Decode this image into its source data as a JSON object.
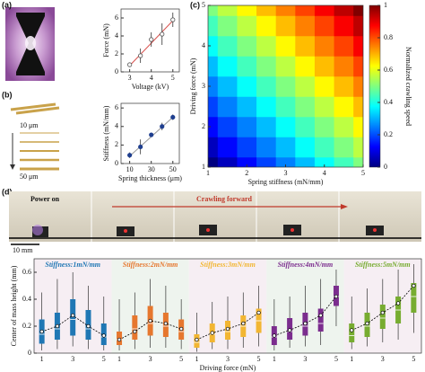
{
  "labels": {
    "a": "(a)",
    "b": "(b)",
    "c": "(c)",
    "d": "(d)",
    "thin": "10 μm",
    "thick": "50 μm",
    "power": "Power on",
    "crawl": "Crawling forward",
    "scale": "10 mm"
  },
  "chart_data": [
    {
      "type": "scatter",
      "xlabel": "Voltage (kV)",
      "ylabel": "Force (mN)",
      "x": [
        3,
        3.5,
        4,
        4.5,
        5
      ],
      "values": [
        0.8,
        1.8,
        3.6,
        4.2,
        5.8
      ],
      "errors": [
        0.2,
        0.8,
        0.8,
        1.2,
        0.8
      ],
      "fit": {
        "x": [
          3,
          5
        ],
        "y": [
          0.7,
          5.7
        ],
        "color": "#d9534f"
      },
      "marker": "open",
      "color": "#555555",
      "xlim": [
        2.6,
        5.3
      ],
      "ylim": [
        0,
        7
      ],
      "xticks": [
        3,
        4,
        5
      ],
      "yticks": [
        0,
        2,
        4,
        6
      ]
    },
    {
      "type": "scatter",
      "xlabel": "Spring thickness (μm)",
      "ylabel": "Stiffness (mN/mm)",
      "x": [
        10,
        20,
        30,
        40,
        50
      ],
      "values": [
        0.9,
        1.8,
        3.1,
        4.0,
        5.0
      ],
      "errors": [
        0.3,
        0.8,
        0.15,
        0.4,
        0.3
      ],
      "fit": {
        "x": [
          10,
          50
        ],
        "y": [
          0.8,
          5.0
        ],
        "color": "#999999"
      },
      "marker": "filled",
      "color": "#1f3f8f",
      "xlim": [
        2,
        56
      ],
      "ylim": [
        0,
        6.5
      ],
      "xticks": [
        10,
        30,
        50
      ],
      "yticks": [
        0,
        2,
        4,
        6
      ]
    },
    {
      "type": "heatmap",
      "xlabel": "Spring stiffness (mN/mm)",
      "ylabel": "Driving force (mN)",
      "colorbar_label": "Normalized crawling speed",
      "x": [
        1,
        1.5,
        2,
        2.5,
        3,
        3.5,
        4,
        4.5,
        5
      ],
      "y": [
        1,
        1.5,
        2,
        2.5,
        3,
        3.5,
        4,
        4.5,
        5
      ],
      "z": [
        [
          0,
          0.06,
          0.13,
          0.19,
          0.25,
          0.31,
          0.38,
          0.44,
          0.5
        ],
        [
          0.06,
          0.13,
          0.19,
          0.25,
          0.31,
          0.38,
          0.44,
          0.5,
          0.56
        ],
        [
          0.13,
          0.19,
          0.25,
          0.31,
          0.38,
          0.44,
          0.5,
          0.56,
          0.63
        ],
        [
          0.19,
          0.25,
          0.31,
          0.38,
          0.44,
          0.5,
          0.56,
          0.63,
          0.69
        ],
        [
          0.25,
          0.31,
          0.38,
          0.44,
          0.5,
          0.56,
          0.63,
          0.69,
          0.75
        ],
        [
          0.31,
          0.38,
          0.44,
          0.5,
          0.56,
          0.63,
          0.69,
          0.75,
          0.81
        ],
        [
          0.38,
          0.44,
          0.5,
          0.56,
          0.63,
          0.69,
          0.75,
          0.81,
          0.88
        ],
        [
          0.44,
          0.5,
          0.56,
          0.63,
          0.69,
          0.75,
          0.81,
          0.88,
          0.94
        ],
        [
          0.5,
          0.56,
          0.63,
          0.69,
          0.75,
          0.81,
          0.88,
          0.94,
          1.0
        ]
      ],
      "xlim": [
        1,
        5
      ],
      "ylim": [
        1,
        5
      ],
      "xticks": [
        1,
        2,
        3,
        4,
        5
      ],
      "yticks": [
        1,
        2,
        3,
        4,
        5
      ],
      "clim": [
        0,
        1
      ],
      "cticks": [
        0,
        0.2,
        0.4,
        0.6,
        0.8,
        1
      ],
      "colormap": "jet"
    },
    {
      "type": "box",
      "xlabel": "Driving force (mN)",
      "ylabel": "Center of mass height (mm)",
      "categories": [
        "1",
        null,
        "3",
        null,
        "5"
      ],
      "ylim": [
        0,
        0.7
      ],
      "yticks": [
        0,
        0.2,
        0.4,
        0.6
      ],
      "mean_line": "dashed",
      "groups": [
        {
          "name": "Stiffness:1mN/mm",
          "color": "#1f77b4",
          "background": "#f6eef3",
          "boxes": [
            {
              "min": 0.02,
              "q1": 0.07,
              "median": 0.14,
              "q3": 0.25,
              "max": 0.45,
              "mean": 0.16
            },
            {
              "min": 0.03,
              "q1": 0.1,
              "median": 0.18,
              "q3": 0.3,
              "max": 0.55,
              "mean": 0.2
            },
            {
              "min": 0.05,
              "q1": 0.13,
              "median": 0.25,
              "q3": 0.4,
              "max": 0.6,
              "mean": 0.28
            },
            {
              "min": 0.03,
              "q1": 0.1,
              "median": 0.18,
              "q3": 0.32,
              "max": 0.5,
              "mean": 0.2
            },
            {
              "min": 0.02,
              "q1": 0.06,
              "median": 0.12,
              "q3": 0.22,
              "max": 0.42,
              "mean": 0.13
            }
          ]
        },
        {
          "name": "Stiffness:2mN/mm",
          "color": "#e6772e",
          "background": "#eef4ee",
          "boxes": [
            {
              "min": 0.02,
              "q1": 0.06,
              "median": 0.1,
              "q3": 0.16,
              "max": 0.4,
              "mean": 0.1
            },
            {
              "min": 0.03,
              "q1": 0.1,
              "median": 0.18,
              "q3": 0.28,
              "max": 0.45,
              "mean": 0.16
            },
            {
              "min": 0.04,
              "q1": 0.13,
              "median": 0.22,
              "q3": 0.35,
              "max": 0.55,
              "mean": 0.24
            },
            {
              "min": 0.04,
              "q1": 0.12,
              "median": 0.2,
              "q3": 0.3,
              "max": 0.5,
              "mean": 0.22
            },
            {
              "min": 0.03,
              "q1": 0.1,
              "median": 0.16,
              "q3": 0.25,
              "max": 0.4,
              "mean": 0.18
            }
          ]
        },
        {
          "name": "Stiffness:3mN/mm",
          "color": "#f2b632",
          "background": "#f6eef3",
          "boxes": [
            {
              "min": 0.01,
              "q1": 0.04,
              "median": 0.08,
              "q3": 0.14,
              "max": 0.3,
              "mean": 0.1
            },
            {
              "min": 0.03,
              "q1": 0.08,
              "median": 0.14,
              "q3": 0.22,
              "max": 0.38,
              "mean": 0.15
            },
            {
              "min": 0.03,
              "q1": 0.1,
              "median": 0.16,
              "q3": 0.24,
              "max": 0.42,
              "mean": 0.18
            },
            {
              "min": 0.04,
              "q1": 0.12,
              "median": 0.2,
              "q3": 0.28,
              "max": 0.45,
              "mean": 0.22
            },
            {
              "min": 0.05,
              "q1": 0.15,
              "median": 0.24,
              "q3": 0.33,
              "max": 0.5,
              "mean": 0.3
            }
          ]
        },
        {
          "name": "Stiffness:4mN/mm",
          "color": "#7b2d8e",
          "background": "#eef4ee",
          "boxes": [
            {
              "min": 0.02,
              "q1": 0.06,
              "median": 0.12,
              "q3": 0.2,
              "max": 0.4,
              "mean": 0.13
            },
            {
              "min": 0.04,
              "q1": 0.1,
              "median": 0.16,
              "q3": 0.26,
              "max": 0.42,
              "mean": 0.17
            },
            {
              "min": 0.05,
              "q1": 0.13,
              "median": 0.2,
              "q3": 0.3,
              "max": 0.5,
              "mean": 0.22
            },
            {
              "min": 0.06,
              "q1": 0.16,
              "median": 0.22,
              "q3": 0.33,
              "max": 0.55,
              "mean": 0.28
            },
            {
              "min": 0.2,
              "q1": 0.35,
              "median": 0.42,
              "q3": 0.5,
              "max": 0.62,
              "mean": 0.42
            }
          ]
        },
        {
          "name": "Stiffness:5mN/mm",
          "color": "#77ac30",
          "background": "#f6eef3",
          "boxes": [
            {
              "min": 0.03,
              "q1": 0.08,
              "median": 0.13,
              "q3": 0.22,
              "max": 0.42,
              "mean": 0.17
            },
            {
              "min": 0.05,
              "q1": 0.12,
              "median": 0.2,
              "q3": 0.3,
              "max": 0.48,
              "mean": 0.22
            },
            {
              "min": 0.08,
              "q1": 0.18,
              "median": 0.26,
              "q3": 0.36,
              "max": 0.55,
              "mean": 0.3
            },
            {
              "min": 0.1,
              "q1": 0.22,
              "median": 0.32,
              "q3": 0.42,
              "max": 0.62,
              "mean": 0.37
            },
            {
              "min": 0.15,
              "q1": 0.3,
              "median": 0.42,
              "q3": 0.52,
              "max": 0.66,
              "mean": 0.5
            }
          ]
        }
      ]
    }
  ]
}
